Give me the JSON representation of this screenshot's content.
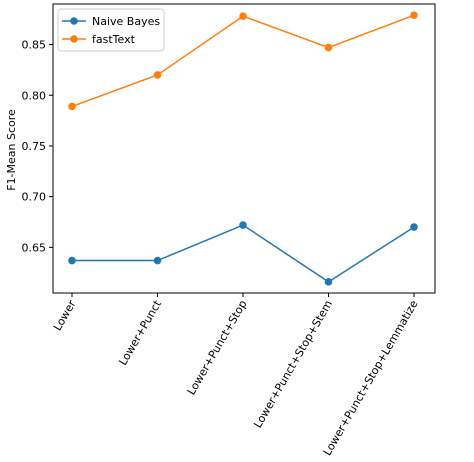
{
  "chart_data": {
    "type": "line",
    "title": "",
    "xlabel": "",
    "ylabel": "F1-Mean Score",
    "categories": [
      "Lower",
      "Lower+Punct",
      "Lower+Punct+Stop",
      "Lower+Punct+Stop+Stem",
      "Lower+Punct+Stop+Lemmatize"
    ],
    "yticks": [
      0.65,
      0.7,
      0.75,
      0.8,
      0.85
    ],
    "ylim": [
      0.605,
      0.89
    ],
    "grid": false,
    "legend_position": "top-left",
    "series": [
      {
        "name": "Naive Bayes",
        "color": "#1f77b4",
        "marker": "circle",
        "values": [
          0.637,
          0.637,
          0.672,
          0.616,
          0.67
        ]
      },
      {
        "name": "fastText",
        "color": "#ff7f0e",
        "marker": "circle",
        "values": [
          0.789,
          0.82,
          0.878,
          0.847,
          0.879
        ]
      }
    ]
  }
}
